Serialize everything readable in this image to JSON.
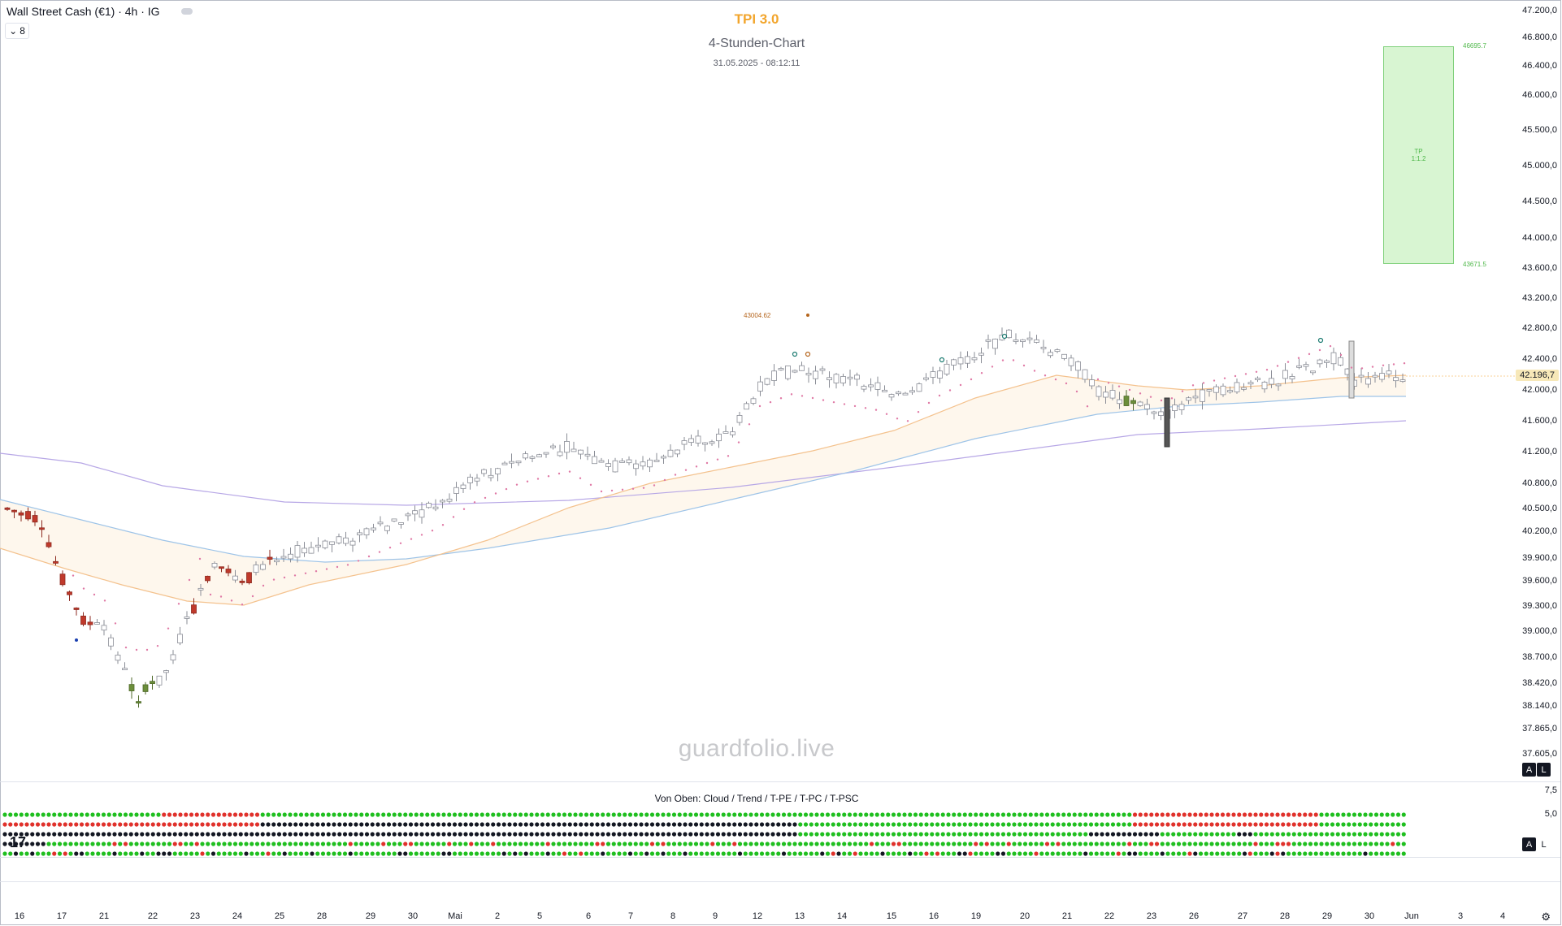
{
  "header": {
    "symbol": "Wall Street Cash (€1) · 4h · IG",
    "indicator_count": "8"
  },
  "titles": {
    "main": "TPI 3.0",
    "sub": "4-Stunden-Chart",
    "timestamp": "31.05.2025 - 08:12:11"
  },
  "price_axis": [
    "47.200,0",
    "46.800,0",
    "46.400,0",
    "46.000,0",
    "45.500,0",
    "45.000,0",
    "44.500,0",
    "44.000,0",
    "43.600,0",
    "43.200,0",
    "42.800,0",
    "42.400,0",
    "42.000,0",
    "41.600,0",
    "41.200,0",
    "40.800,0",
    "40.500,0",
    "40.200,0",
    "39.900,0",
    "39.600,0",
    "39.300,0",
    "39.000,0",
    "38.700,0",
    "38.420,0",
    "38.140,0",
    "37.865,0",
    "37.605,0"
  ],
  "current_price": "42.196,7",
  "time_axis": [
    "16",
    "17",
    "21",
    "22",
    "23",
    "24",
    "25",
    "28",
    "29",
    "30",
    "Mai",
    "2",
    "5",
    "6",
    "7",
    "8",
    "9",
    "12",
    "13",
    "14",
    "15",
    "16",
    "19",
    "20",
    "21",
    "22",
    "23",
    "26",
    "27",
    "28",
    "29",
    "30",
    "Jun",
    "3",
    "4"
  ],
  "tp_box": {
    "label_line1": "TP",
    "label_line2": "1:1.2",
    "upper": "46695.7",
    "lower": "43671.5"
  },
  "marker_label": "43004.62",
  "watermark": "guardfolio.live",
  "subpanel": {
    "title": "Von Oben: Cloud / Trend / T-PE / T-PC / T-PSC",
    "axis": [
      "7,5",
      "5,0"
    ]
  },
  "buttons": {
    "auto": "A",
    "log": "L"
  },
  "colors": {
    "accent_title": "#f2a52c",
    "tp_fill": "#d8f5d2",
    "bull_candle": "#6b8e3a",
    "bear_candle": "#c0392b",
    "dot_green": "#1fbf1f",
    "dot_red": "#e0312b",
    "dot_black": "#131722"
  },
  "icons": {
    "logo": "tradingview-logo",
    "settings": "gear-icon",
    "collapse": "minus-icon",
    "chevron": "chevron-down-icon"
  }
}
